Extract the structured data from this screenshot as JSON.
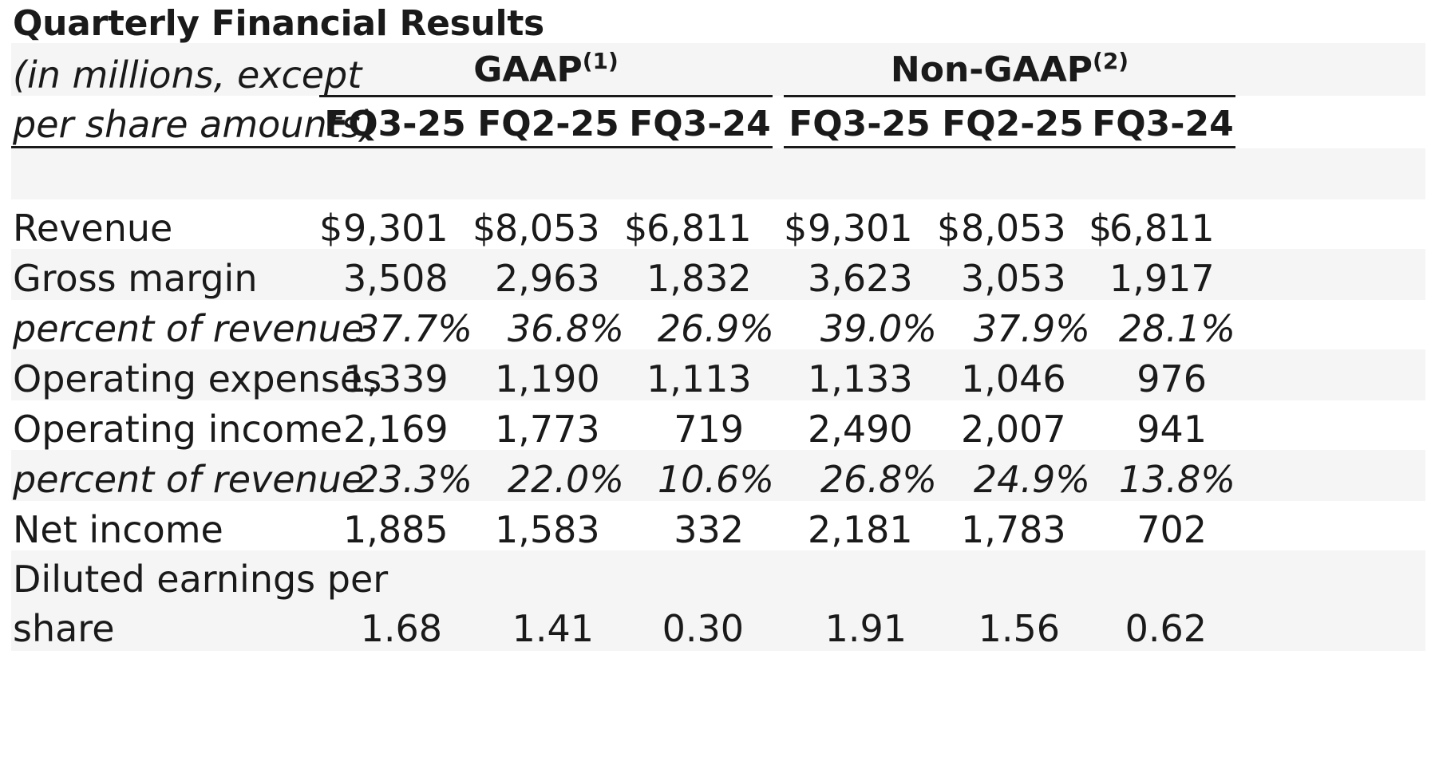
{
  "title": "Quarterly Financial Results",
  "units": {
    "line1": "(in millions, except",
    "line2": "per share amounts)"
  },
  "groups": [
    {
      "label": "GAAP",
      "footnote": "(1)"
    },
    {
      "label": "Non-GAAP",
      "footnote": "(2)"
    }
  ],
  "columns": [
    "FQ3-25",
    "FQ2-25",
    "FQ3-24",
    "FQ3-25",
    "FQ2-25",
    "FQ3-24"
  ],
  "currency_symbol": "$",
  "rows": [
    {
      "label": "Revenue",
      "style": "normal",
      "values": [
        "9,301",
        "8,053",
        "6,811",
        "9,301",
        "8,053",
        "6,811"
      ]
    },
    {
      "label": "Gross margin",
      "style": "normal",
      "values": [
        "3,508",
        "2,963",
        "1,832",
        "3,623",
        "3,053",
        "1,917"
      ]
    },
    {
      "label": "percent of revenue",
      "style": "italic",
      "values": [
        "37.7%",
        "36.8%",
        "26.9%",
        "39.0%",
        "37.9%",
        "28.1%"
      ]
    },
    {
      "label": "Operating expenses",
      "style": "normal",
      "values": [
        "1,339",
        "1,190",
        "1,113",
        "1,133",
        "1,046",
        "976"
      ]
    },
    {
      "label": "Operating income",
      "style": "normal",
      "values": [
        "2,169",
        "1,773",
        "719",
        "2,490",
        "2,007",
        "941"
      ]
    },
    {
      "label": "percent of revenue",
      "style": "italic",
      "values": [
        "23.3%",
        "22.0%",
        "10.6%",
        "26.8%",
        "24.9%",
        "13.8%"
      ]
    },
    {
      "label": "Net income",
      "style": "normal",
      "values": [
        "1,885",
        "1,583",
        "332",
        "2,181",
        "1,783",
        "702"
      ]
    },
    {
      "label_line1": "Diluted earnings per",
      "label_line2": "share",
      "style": "normal",
      "values": [
        "1.68",
        "1.41",
        "0.30",
        "1.91",
        "1.56",
        "0.62"
      ]
    }
  ]
}
